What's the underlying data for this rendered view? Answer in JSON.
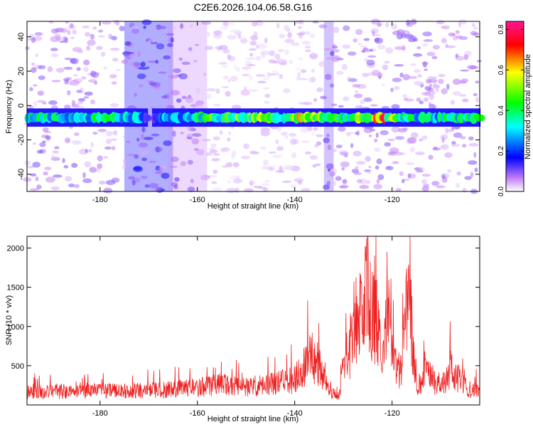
{
  "figure_title": "C2E6.2026.104.06.58.G16",
  "chart_data": [
    {
      "type": "heatmap",
      "title": "C2E6.2026.104.06.58.G16",
      "xlabel": "Height of straight line (km)",
      "ylabel": "Frequency (Hz)",
      "xlim": [
        -195,
        -102
      ],
      "ylim": [
        -50,
        49
      ],
      "x_ticks": [
        -180,
        -160,
        -140,
        -120
      ],
      "y_ticks": [
        -40,
        -20,
        0,
        20,
        40
      ],
      "colorbar": {
        "label": "Normalized spectral amplitude",
        "range": [
          0.0,
          0.84
        ],
        "ticks": [
          "0.0",
          "0.2",
          "0.4",
          "0.6",
          "0.8"
        ],
        "colors": [
          "#ffffff",
          "#a855f7",
          "#0000ff",
          "#00ffff",
          "#00ff00",
          "#ffff00",
          "#ff0000",
          "#ff1493"
        ]
      },
      "band": {
        "center_frequency": -7,
        "half_width": 2.8,
        "profile": [
          {
            "x": -195,
            "amp": 0.5
          },
          {
            "x": -185,
            "amp": 0.44
          },
          {
            "x": -178,
            "amp": 0.46
          },
          {
            "x": -172,
            "amp": 0.4
          },
          {
            "x": -170,
            "amp": 0.1
          },
          {
            "x": -167,
            "amp": 0.35
          },
          {
            "x": -160,
            "amp": 0.45
          },
          {
            "x": -155,
            "amp": 0.58
          },
          {
            "x": -150,
            "amp": 0.62
          },
          {
            "x": -145,
            "amp": 0.55
          },
          {
            "x": -140,
            "amp": 0.63
          },
          {
            "x": -137,
            "amp": 0.66
          },
          {
            "x": -133,
            "amp": 0.48
          },
          {
            "x": -130,
            "amp": 0.5
          },
          {
            "x": -128,
            "amp": 0.62
          },
          {
            "x": -125,
            "amp": 0.72
          },
          {
            "x": -122,
            "amp": 0.78
          },
          {
            "x": -120,
            "amp": 0.58
          },
          {
            "x": -116,
            "amp": 0.46
          },
          {
            "x": -112,
            "amp": 0.42
          },
          {
            "x": -108,
            "amp": 0.48
          },
          {
            "x": -102,
            "amp": 0.52
          }
        ]
      },
      "vertical_stripes": [
        {
          "x_from": -175,
          "x_to": -165,
          "amp": 0.18
        },
        {
          "x_from": -166,
          "x_to": -158,
          "amp": 0.07
        },
        {
          "x_from": -134,
          "x_to": -132,
          "amp": 0.12
        }
      ]
    },
    {
      "type": "line",
      "xlabel": "Height of straight line (km)",
      "ylabel": "SNR (10 * v/v)",
      "xlim": [
        -195,
        -102
      ],
      "ylim": [
        0,
        2150
      ],
      "x_ticks": [
        -180,
        -160,
        -140,
        -120
      ],
      "y_ticks": [
        500,
        1000,
        1500,
        2000
      ],
      "series": [
        {
          "name": "SNR",
          "color": "#ee2222",
          "envelope": {
            "x": [
              -195,
              -180,
              -165,
              -160,
              -155,
              -150,
              -145,
              -140,
              -137,
              -135,
              -133,
              -131,
              -129,
              -127,
              -126,
              -125,
              -124,
              -123,
              -122,
              -121,
              -120,
              -119,
              -118,
              -117,
              -116,
              -115,
              -113,
              -110,
              -108,
              -106,
              -104,
              -102
            ],
            "y": [
              200,
              220,
              240,
              280,
              330,
              290,
              340,
              400,
              720,
              640,
              210,
              140,
              860,
              1250,
              1500,
              2050,
              1350,
              1300,
              560,
              1400,
              1300,
              560,
              600,
              1650,
              1380,
              200,
              520,
              260,
              560,
              420,
              200,
              280
            ]
          }
        }
      ]
    }
  ]
}
